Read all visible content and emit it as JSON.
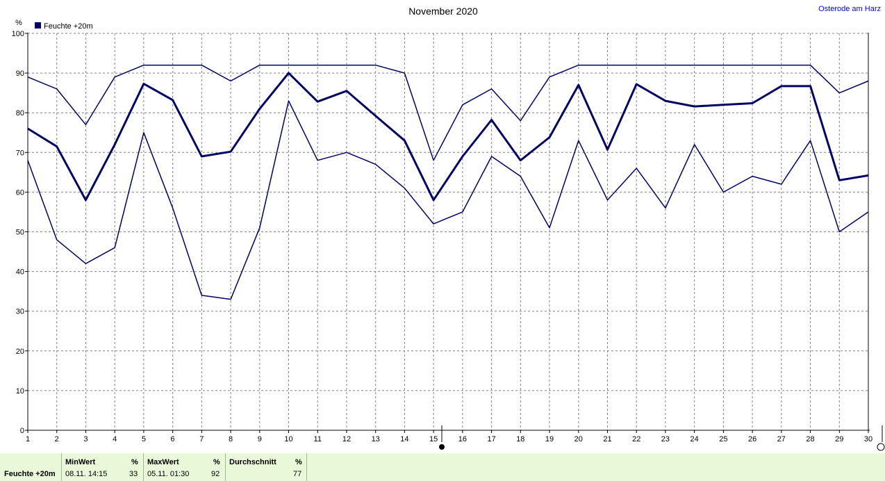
{
  "chart_data": {
    "type": "line",
    "title": "November 2020",
    "location": "Osterode am Harz",
    "ylabel": "%",
    "ylim": [
      0,
      100
    ],
    "yticks": [
      0,
      10,
      20,
      30,
      40,
      50,
      60,
      70,
      80,
      90,
      100
    ],
    "x": [
      1,
      2,
      3,
      4,
      5,
      6,
      7,
      8,
      9,
      10,
      11,
      12,
      13,
      14,
      15,
      16,
      17,
      18,
      19,
      20,
      21,
      22,
      23,
      24,
      25,
      26,
      27,
      28,
      29,
      30
    ],
    "legend": [
      "Feuchte +20m"
    ],
    "legend_placement": "top-left",
    "grid": true,
    "color": "#000066",
    "series": [
      {
        "role": "max",
        "values": [
          89,
          86,
          77,
          89,
          92,
          92,
          92,
          88,
          92,
          92,
          92,
          92,
          92,
          90,
          68,
          82,
          86,
          78,
          89,
          92,
          92,
          92,
          92,
          92,
          92,
          92,
          92,
          92,
          85,
          88
        ]
      },
      {
        "role": "mean",
        "values": [
          76,
          71.5,
          58,
          72,
          87.3,
          83.2,
          69,
          70.2,
          81,
          90,
          82.8,
          85.5,
          79.2,
          73,
          58,
          69,
          78.2,
          68,
          73.8,
          87,
          70.7,
          87.2,
          83,
          81.6,
          82,
          82.4,
          86.7,
          86.7,
          63,
          64.2
        ]
      },
      {
        "role": "min",
        "values": [
          68,
          48,
          42,
          46,
          75,
          56,
          34,
          33,
          51,
          83,
          68,
          70,
          67,
          61,
          52,
          55,
          69,
          64,
          51,
          73,
          58,
          66,
          56,
          72,
          60,
          64,
          62,
          73,
          50,
          55
        ]
      }
    ]
  },
  "stats": {
    "row_label": "Feuchte +20m",
    "min_header": "MinWert",
    "min_unit": "%",
    "min_time": "08.11.  14:15",
    "min_value": "33",
    "max_header": "MaxWert",
    "max_unit": "%",
    "max_time": "05.11.  01:30",
    "max_value": "92",
    "avg_header": "Durchschnitt",
    "avg_unit": "%",
    "avg_value": "77"
  }
}
